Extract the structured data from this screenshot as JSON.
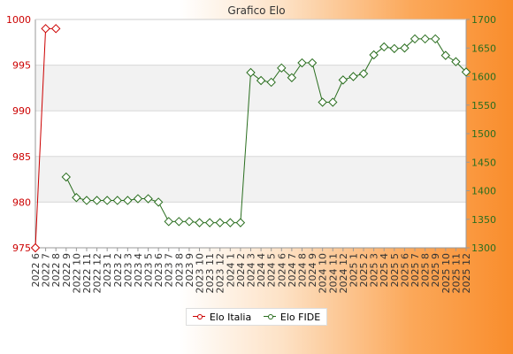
{
  "chart_data": {
    "type": "line",
    "title": "Grafico Elo",
    "categories": [
      "2022 6",
      "2022 7",
      "2022 8",
      "2022 9",
      "2022 10",
      "2022 11",
      "2022 12",
      "2023 1",
      "2023 2",
      "2023 3",
      "2023 4",
      "2023 5",
      "2023 6",
      "2023 7",
      "2023 8",
      "2023 9",
      "2023 10",
      "2023 11",
      "2023 12",
      "2024 1",
      "2024 2",
      "2024 3",
      "2024 4",
      "2024 5",
      "2024 6",
      "2024 7",
      "2024 8",
      "2024 9",
      "2024 10",
      "2024 11",
      "2024 12",
      "2025 1",
      "2025 2",
      "2025 3",
      "2025 4",
      "2025 5",
      "2025 6",
      "2025 7",
      "2025 8",
      "2025 9",
      "2025 10",
      "2025 11",
      "2025 12"
    ],
    "y_left": {
      "ylim": [
        975,
        1000
      ],
      "ticks": [
        975,
        980,
        985,
        990,
        995,
        1000
      ],
      "color": "#cc0000"
    },
    "y_right": {
      "ylim": [
        1300,
        1700
      ],
      "ticks": [
        1300,
        1350,
        1400,
        1450,
        1500,
        1550,
        1600,
        1650,
        1700
      ],
      "color": "#2a6e1f"
    },
    "grid": true,
    "legend_position": "bottom",
    "series": [
      {
        "name": "Elo Italia",
        "axis": "left",
        "color": "#cc0000",
        "values": [
          975,
          999,
          999,
          null,
          null,
          null,
          null,
          null,
          null,
          null,
          null,
          null,
          null,
          null,
          null,
          null,
          null,
          null,
          null,
          null,
          null,
          null,
          null,
          null,
          null,
          null,
          null,
          null,
          null,
          null,
          null,
          null,
          null,
          null,
          null,
          null,
          null,
          null,
          null,
          null,
          null,
          null,
          null
        ]
      },
      {
        "name": "Elo FIDE",
        "axis": "right",
        "color": "#2a6e1f",
        "values": [
          null,
          null,
          null,
          1424,
          1388,
          1383,
          1383,
          1383,
          1383,
          1383,
          1386,
          1386,
          1380,
          1346,
          1346,
          1346,
          1344,
          1344,
          1344,
          1344,
          1344,
          1607,
          1593,
          1590,
          1615,
          1598,
          1624,
          1624,
          1555,
          1555,
          1594,
          1600,
          1605,
          1638,
          1652,
          1649,
          1650,
          1666,
          1666,
          1666,
          1637,
          1626,
          1608
        ]
      }
    ]
  }
}
